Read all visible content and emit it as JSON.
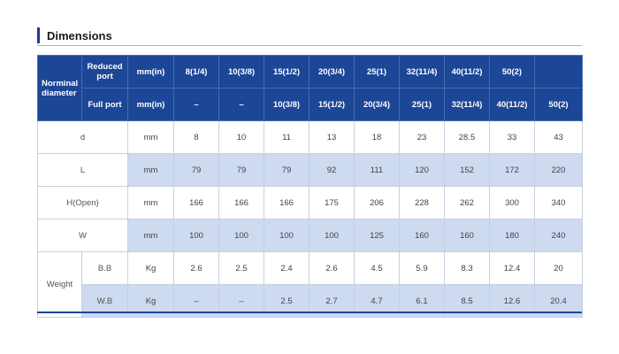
{
  "title": "Dimensions",
  "header": {
    "nominal_label": "Norminal diameter",
    "reduced_label": "Reduced port",
    "full_label": "Full port",
    "unit": "mm(in)",
    "reduced_sizes": [
      "8(1/4)",
      "10(3/8)",
      "15(1/2)",
      "20(3/4)",
      "25(1)",
      "32(11/4)",
      "40(11/2)",
      "50(2)",
      ""
    ],
    "full_sizes": [
      "–",
      "–",
      "10(3/8)",
      "15(1/2)",
      "20(3/4)",
      "25(1)",
      "32(11/4)",
      "40(11/2)",
      "50(2)"
    ]
  },
  "rows": {
    "d": {
      "label": "d",
      "unit": "mm",
      "values": [
        "8",
        "10",
        "11",
        "13",
        "18",
        "23",
        "28.5",
        "33",
        "43"
      ]
    },
    "L": {
      "label": "L",
      "unit": "mm",
      "values": [
        "79",
        "79",
        "79",
        "92",
        "111",
        "120",
        "152",
        "172",
        "220"
      ]
    },
    "H": {
      "label": "H(Open)",
      "unit": "mm",
      "values": [
        "166",
        "166",
        "166",
        "175",
        "206",
        "228",
        "262",
        "300",
        "340"
      ]
    },
    "W": {
      "label": "W",
      "unit": "mm",
      "values": [
        "100",
        "100",
        "100",
        "100",
        "125",
        "160",
        "160",
        "180",
        "240"
      ]
    },
    "weight": {
      "label": "Weight",
      "bb": {
        "label": "B.B",
        "unit": "Kg",
        "values": [
          "2.6",
          "2.5",
          "2.4",
          "2.6",
          "4.5",
          "5.9",
          "8.3",
          "12.4",
          "20"
        ]
      },
      "wb": {
        "label": "W.B",
        "unit": "Kg",
        "values": [
          "–",
          "–",
          "2.5",
          "2.7",
          "4.7",
          "6.1",
          "8.5",
          "12.6",
          "20.4"
        ]
      }
    }
  },
  "colors": {
    "header": "#1c4696",
    "shaded": "#cddaf0",
    "accent": "#e3b04b"
  }
}
